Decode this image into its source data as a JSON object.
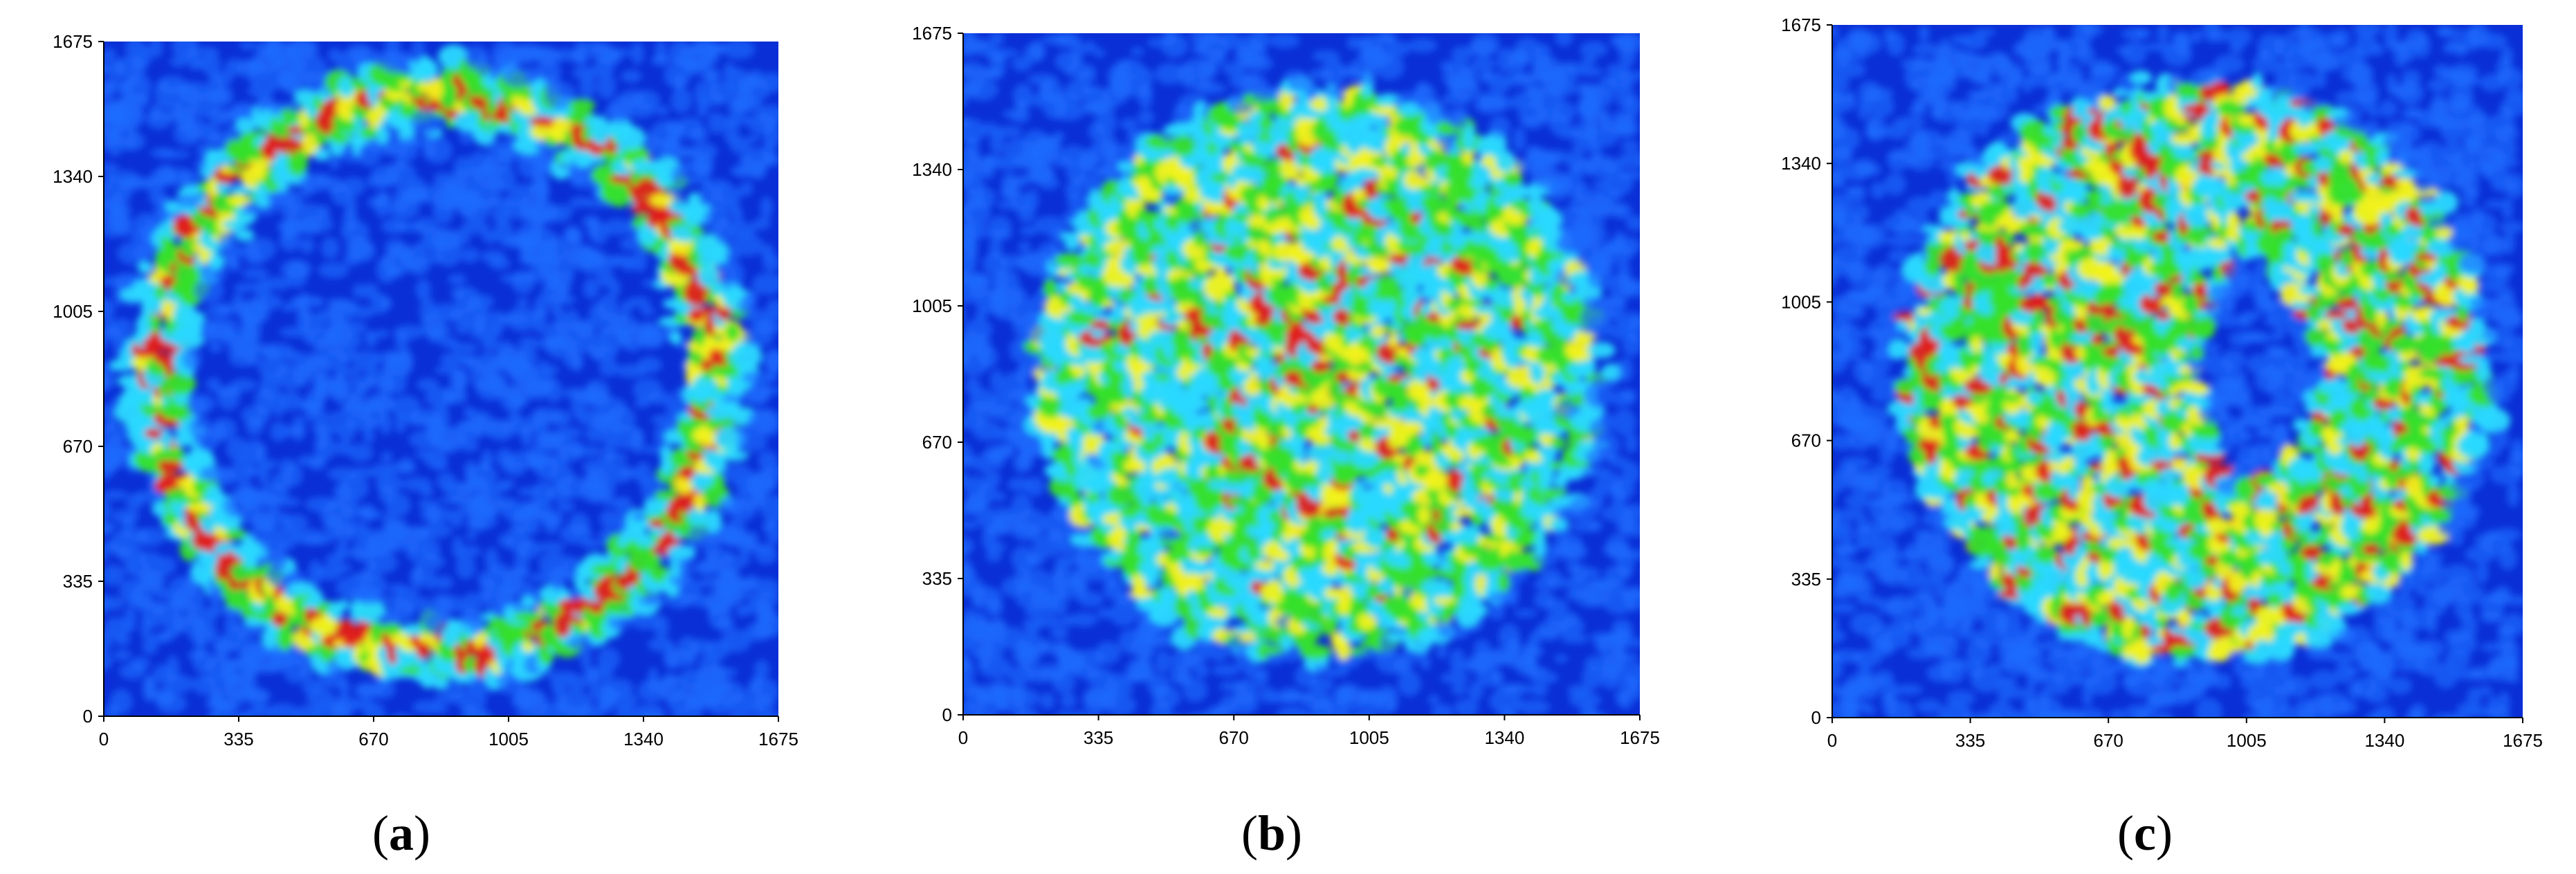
{
  "chart_data": [
    {
      "type": "heatmap",
      "panel_label": "a",
      "xlim": [
        0,
        1675
      ],
      "ylim": [
        0,
        1675
      ],
      "x_ticks": [
        "0",
        "335",
        "670",
        "1005",
        "1340",
        "1675"
      ],
      "y_ticks": [
        "0",
        "335",
        "670",
        "1005",
        "1340",
        "1675"
      ],
      "pattern": "ring",
      "ring_center": [
        830,
        850
      ],
      "ring_radius": 690,
      "ring_width": 80,
      "grid": false
    },
    {
      "type": "heatmap",
      "panel_label": "b",
      "xlim": [
        0,
        1675
      ],
      "ylim": [
        0,
        1675
      ],
      "x_ticks": [
        "0",
        "335",
        "670",
        "1005",
        "1340",
        "1675"
      ],
      "y_ticks": [
        "0",
        "335",
        "670",
        "1005",
        "1340",
        "1675"
      ],
      "pattern": "disk",
      "disk_center": [
        880,
        840
      ],
      "disk_radius": 690,
      "grid": false
    },
    {
      "type": "heatmap",
      "panel_label": "c",
      "xlim": [
        0,
        1675
      ],
      "ylim": [
        0,
        1675
      ],
      "x_ticks": [
        "0",
        "335",
        "670",
        "1005",
        "1340",
        "1675"
      ],
      "y_ticks": [
        "0",
        "335",
        "670",
        "1005",
        "1340",
        "1675"
      ],
      "pattern": "annulus",
      "annulus_center": [
        880,
        840
      ],
      "annulus_outer_radius": 700,
      "annulus_inner_radius": 300,
      "grid": false
    }
  ],
  "colors": {
    "background": "#0a2fd6",
    "low": "#1e6dff",
    "cyan": "#2ad9ff",
    "green": "#36e02a",
    "yellow": "#f2f21a",
    "red": "#e0201a"
  }
}
